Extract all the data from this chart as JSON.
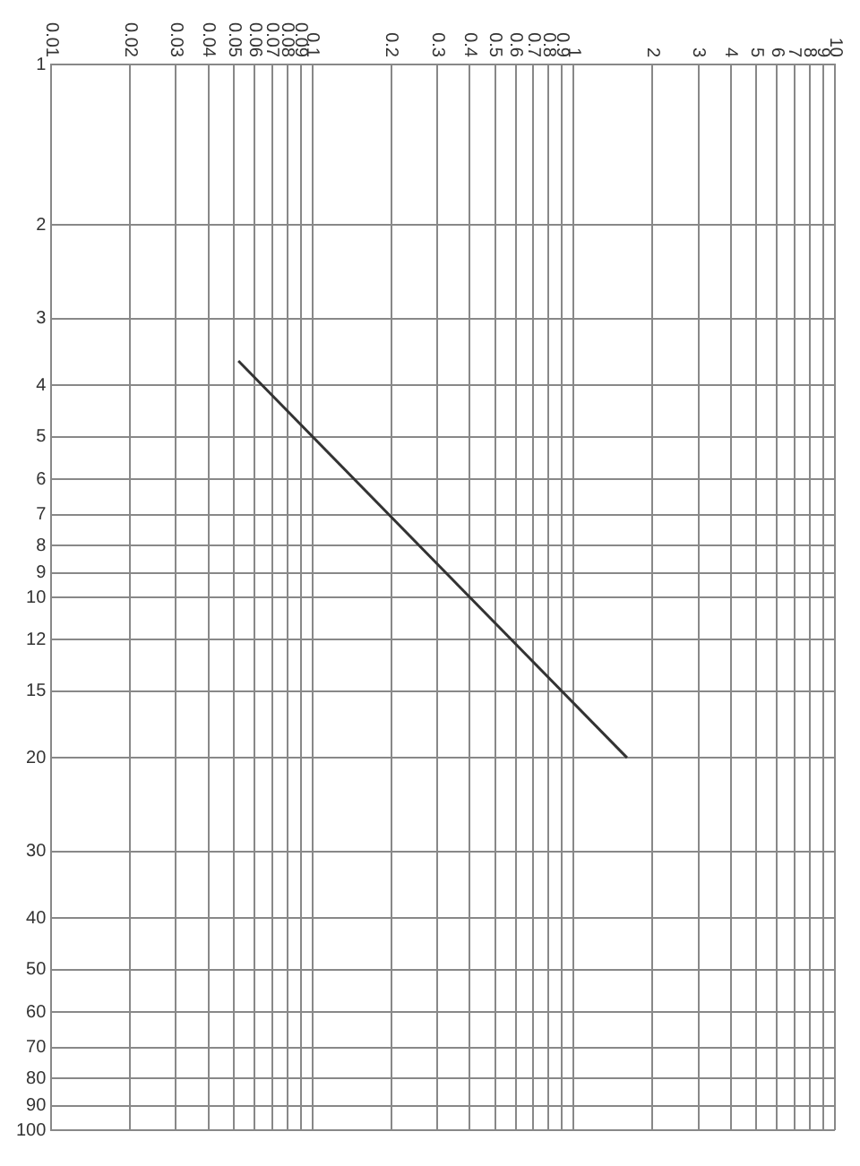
{
  "chart_data": {
    "type": "line",
    "log": "xy",
    "grid": true,
    "marker": "none",
    "line_style": "solid",
    "x": [
      0.052,
      1.6
    ],
    "series": [
      {
        "color": "#333333",
        "values": [
          3.6,
          20
        ]
      }
    ],
    "xlim": [
      0.01,
      10
    ],
    "xticks": [
      0.01,
      0.02,
      0.03,
      0.04,
      0.05,
      0.06,
      0.07,
      0.08,
      0.09,
      0.1,
      0.2,
      0.3,
      0.4,
      0.5,
      0.6,
      0.7,
      0.8,
      0.9,
      1,
      2,
      3,
      4,
      5,
      6,
      7,
      8,
      9,
      10
    ],
    "ylim": [
      100,
      1
    ],
    "yticks": [
      1,
      2,
      3,
      4,
      5,
      6,
      7,
      8,
      9,
      10,
      12,
      15,
      20,
      30,
      40,
      50,
      60,
      70,
      80,
      90,
      100
    ]
  }
}
